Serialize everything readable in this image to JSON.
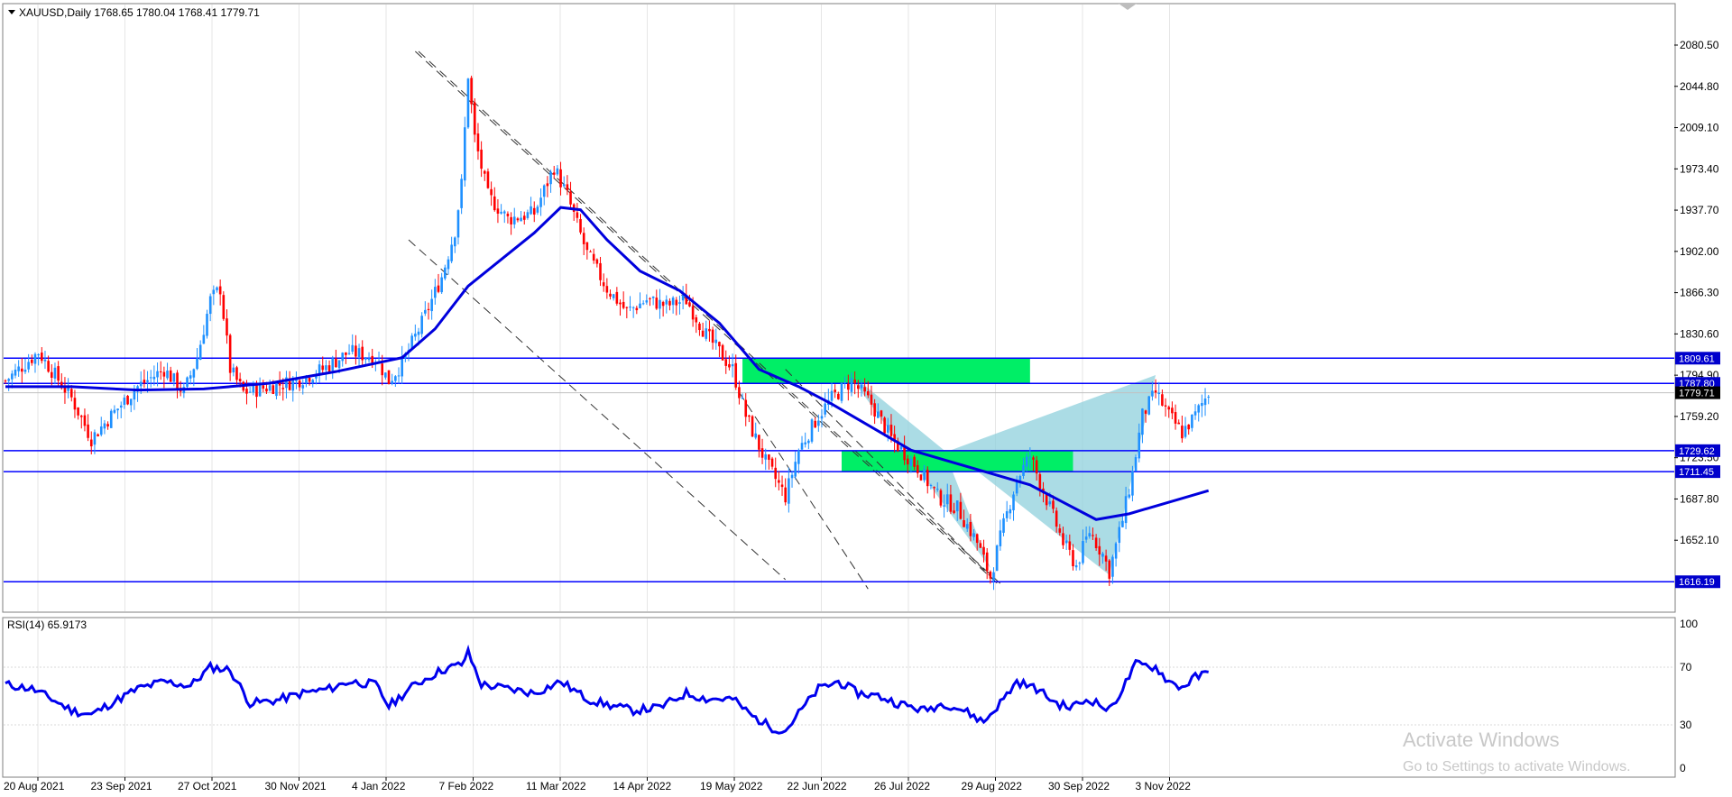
{
  "header": {
    "symbol_line": "XAUUSD,Daily  1768.65 1780.04 1768.41 1779.71"
  },
  "rsi_label": "RSI(14) 65.9173",
  "watermark": {
    "title": "Activate Windows",
    "subtitle": "Go to Settings to activate Windows."
  },
  "colors": {
    "bull": "#1e90ff",
    "bear": "#ff0000",
    "ma": "#0000dd",
    "hline": "#0000ff",
    "zone": "#00ee66",
    "pattern": "#8fd0dc",
    "rsi": "#0000ee"
  },
  "chart_data": [
    {
      "type": "candlestick",
      "ylim": [
        1600,
        2100
      ],
      "y_ticks": [
        "2080.50",
        "2044.80",
        "2009.10",
        "1973.40",
        "1937.70",
        "1902.00",
        "1866.30",
        "1830.60",
        "1794.90",
        "1759.20",
        "1723.50",
        "1687.80",
        "1652.10"
      ],
      "x_ticks": [
        "20 Aug 2021",
        "23 Sep 2021",
        "27 Oct 2021",
        "30 Nov 2021",
        "4 Jan 2022",
        "7 Feb 2022",
        "11 Mar 2022",
        "14 Apr 2022",
        "19 May 2022",
        "22 Jun 2022",
        "26 Jul 2022",
        "29 Aug 2022",
        "30 Sep 2022",
        "3 Nov 2022"
      ],
      "levels": [
        {
          "value": 1809.61,
          "label": "1809.61"
        },
        {
          "value": 1787.8,
          "label": "1787.80"
        },
        {
          "value": 1729.62,
          "label": "1729.62"
        },
        {
          "value": 1711.45,
          "label": "1711.45"
        },
        {
          "value": 1616.19,
          "label": "1616.19"
        }
      ],
      "current_price": {
        "value": 1779.71,
        "label": "1779.71"
      },
      "close_path": [
        [
          0,
          1790
        ],
        [
          10,
          1815
        ],
        [
          20,
          1775
        ],
        [
          26,
          1740
        ],
        [
          32,
          1760
        ],
        [
          40,
          1785
        ],
        [
          48,
          1800
        ],
        [
          54,
          1780
        ],
        [
          58,
          1810
        ],
        [
          62,
          1860
        ],
        [
          65,
          1870
        ],
        [
          68,
          1800
        ],
        [
          72,
          1780
        ],
        [
          80,
          1785
        ],
        [
          88,
          1790
        ],
        [
          96,
          1800
        ],
        [
          104,
          1815
        ],
        [
          112,
          1810
        ],
        [
          116,
          1790
        ],
        [
          120,
          1805
        ],
        [
          126,
          1840
        ],
        [
          132,
          1880
        ],
        [
          136,
          1920
        ],
        [
          138,
          1960
        ],
        [
          140,
          2055
        ],
        [
          142,
          2000
        ],
        [
          146,
          1950
        ],
        [
          152,
          1930
        ],
        [
          160,
          1935
        ],
        [
          166,
          1975
        ],
        [
          170,
          1950
        ],
        [
          176,
          1900
        ],
        [
          182,
          1870
        ],
        [
          188,
          1850
        ],
        [
          194,
          1860
        ],
        [
          200,
          1855
        ],
        [
          206,
          1860
        ],
        [
          212,
          1830
        ],
        [
          220,
          1800
        ],
        [
          224,
          1760
        ],
        [
          230,
          1720
        ],
        [
          236,
          1690
        ],
        [
          240,
          1730
        ],
        [
          246,
          1760
        ],
        [
          250,
          1775
        ],
        [
          256,
          1790
        ],
        [
          262,
          1770
        ],
        [
          268,
          1740
        ],
        [
          276,
          1715
        ],
        [
          282,
          1690
        ],
        [
          288,
          1680
        ],
        [
          294,
          1650
        ],
        [
          298,
          1620
        ],
        [
          302,
          1665
        ],
        [
          306,
          1705
        ],
        [
          310,
          1725
        ],
        [
          316,
          1680
        ],
        [
          320,
          1650
        ],
        [
          324,
          1630
        ],
        [
          328,
          1660
        ],
        [
          332,
          1640
        ],
        [
          334,
          1625
        ],
        [
          338,
          1670
        ],
        [
          341,
          1710
        ],
        [
          344,
          1760
        ],
        [
          348,
          1780
        ],
        [
          352,
          1760
        ],
        [
          356,
          1745
        ],
        [
          360,
          1760
        ],
        [
          364,
          1780
        ]
      ],
      "moving_average": [
        [
          0,
          1785
        ],
        [
          20,
          1785
        ],
        [
          40,
          1782
        ],
        [
          60,
          1783
        ],
        [
          80,
          1788
        ],
        [
          100,
          1798
        ],
        [
          120,
          1810
        ],
        [
          130,
          1835
        ],
        [
          140,
          1872
        ],
        [
          150,
          1895
        ],
        [
          160,
          1918
        ],
        [
          168,
          1940
        ],
        [
          174,
          1938
        ],
        [
          182,
          1912
        ],
        [
          192,
          1885
        ],
        [
          204,
          1868
        ],
        [
          216,
          1840
        ],
        [
          228,
          1800
        ],
        [
          240,
          1785
        ],
        [
          250,
          1770
        ],
        [
          262,
          1750
        ],
        [
          274,
          1730
        ],
        [
          286,
          1720
        ],
        [
          298,
          1710
        ],
        [
          310,
          1700
        ],
        [
          320,
          1685
        ],
        [
          330,
          1670
        ],
        [
          340,
          1675
        ],
        [
          352,
          1685
        ],
        [
          364,
          1695
        ]
      ]
    },
    {
      "type": "line",
      "title": "RSI(14) 65.9173",
      "ylim": [
        0,
        100
      ],
      "y_ticks": [
        "100",
        "70",
        "30",
        "0"
      ],
      "rsi_path": [
        [
          0,
          58
        ],
        [
          8,
          55
        ],
        [
          14,
          48
        ],
        [
          20,
          40
        ],
        [
          26,
          37
        ],
        [
          32,
          45
        ],
        [
          40,
          55
        ],
        [
          48,
          60
        ],
        [
          56,
          57
        ],
        [
          62,
          70
        ],
        [
          68,
          68
        ],
        [
          74,
          45
        ],
        [
          82,
          47
        ],
        [
          90,
          52
        ],
        [
          98,
          55
        ],
        [
          104,
          60
        ],
        [
          112,
          58
        ],
        [
          116,
          43
        ],
        [
          124,
          58
        ],
        [
          132,
          68
        ],
        [
          138,
          72
        ],
        [
          140,
          80
        ],
        [
          144,
          58
        ],
        [
          152,
          55
        ],
        [
          160,
          52
        ],
        [
          168,
          60
        ],
        [
          176,
          48
        ],
        [
          182,
          44
        ],
        [
          190,
          40
        ],
        [
          198,
          42
        ],
        [
          206,
          52
        ],
        [
          212,
          48
        ],
        [
          220,
          48
        ],
        [
          226,
          36
        ],
        [
          232,
          28
        ],
        [
          236,
          26
        ],
        [
          240,
          38
        ],
        [
          246,
          55
        ],
        [
          252,
          60
        ],
        [
          258,
          52
        ],
        [
          264,
          50
        ],
        [
          270,
          45
        ],
        [
          278,
          40
        ],
        [
          284,
          45
        ],
        [
          290,
          40
        ],
        [
          296,
          32
        ],
        [
          302,
          48
        ],
        [
          306,
          60
        ],
        [
          312,
          55
        ],
        [
          318,
          45
        ],
        [
          322,
          42
        ],
        [
          328,
          48
        ],
        [
          334,
          40
        ],
        [
          338,
          55
        ],
        [
          342,
          72
        ],
        [
          348,
          70
        ],
        [
          352,
          60
        ],
        [
          356,
          56
        ],
        [
          360,
          63
        ],
        [
          364,
          66
        ]
      ]
    }
  ]
}
